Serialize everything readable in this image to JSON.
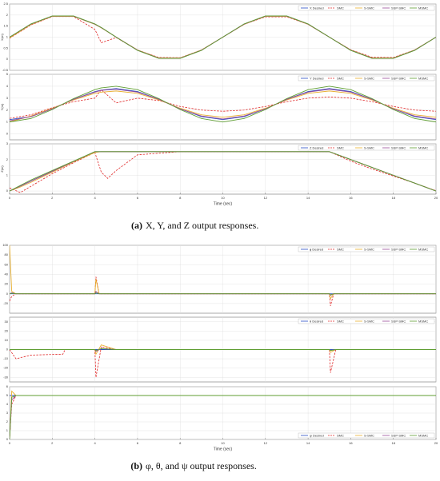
{
  "chart_data": [
    {
      "type": "line",
      "ylabel": "X(m)",
      "xlim": [
        0,
        20
      ],
      "ylim": [
        -0.5,
        2.5
      ],
      "yticks": [
        -0.5,
        0,
        0.5,
        1,
        1.5,
        2,
        2.5
      ],
      "grid": true,
      "legend": "top-right",
      "x": [
        0,
        1,
        2,
        3,
        4,
        4.3,
        5,
        6,
        7,
        8,
        9,
        10,
        11,
        12,
        13,
        14,
        15,
        16,
        17,
        18,
        19,
        20
      ],
      "series": [
        {
          "name": "X Desired",
          "color": "#2b4fc4",
          "dash": false,
          "values": [
            1,
            1.59,
            1.95,
            1.95,
            1.59,
            1.43,
            1,
            0.41,
            0.05,
            0.05,
            0.41,
            1,
            1.59,
            1.95,
            1.95,
            1.59,
            1,
            0.41,
            0.05,
            0.05,
            0.41,
            1
          ]
        },
        {
          "name": "SMC",
          "color": "#e02828",
          "dash": true,
          "values": [
            0.95,
            1.55,
            1.93,
            1.93,
            1.35,
            0.75,
            0.98,
            0.42,
            0.08,
            0.07,
            0.42,
            1,
            1.58,
            1.92,
            1.92,
            1.58,
            1,
            0.43,
            0.09,
            0.08,
            0.42,
            1
          ]
        },
        {
          "name": "S-SMC",
          "color": "#e8b030",
          "dash": false,
          "values": [
            0.97,
            1.57,
            1.94,
            1.94,
            1.58,
            1.42,
            1,
            0.42,
            0.06,
            0.06,
            0.42,
            1,
            1.58,
            1.94,
            1.94,
            1.58,
            1,
            0.42,
            0.06,
            0.06,
            0.42,
            1
          ]
        },
        {
          "name": "SSP-SMC",
          "color": "#9a4f9a",
          "dash": false,
          "values": [
            1,
            1.59,
            1.95,
            1.95,
            1.59,
            1.43,
            1,
            0.41,
            0.05,
            0.05,
            0.41,
            1,
            1.59,
            1.95,
            1.95,
            1.59,
            1,
            0.41,
            0.05,
            0.05,
            0.41,
            1
          ]
        },
        {
          "name": "MSMC",
          "color": "#5f9e32",
          "dash": false,
          "values": [
            1,
            1.6,
            1.96,
            1.96,
            1.6,
            1.44,
            1,
            0.4,
            0.04,
            0.04,
            0.4,
            1,
            1.6,
            1.96,
            1.96,
            1.6,
            1,
            0.4,
            0.04,
            0.04,
            0.4,
            1
          ]
        }
      ]
    },
    {
      "type": "line",
      "ylabel": "Y(m)",
      "xlim": [
        0,
        20
      ],
      "ylim": [
        -0.5,
        5
      ],
      "yticks": [
        0,
        1,
        2,
        3,
        4,
        5
      ],
      "grid": true,
      "legend": "top-right",
      "x": [
        0,
        1,
        2,
        3,
        4,
        4.3,
        5,
        6,
        7,
        8,
        9,
        10,
        11,
        12,
        13,
        14,
        15,
        16,
        17,
        18,
        19,
        20
      ],
      "series": [
        {
          "name": "Y Desired",
          "color": "#2b4fc4",
          "dash": false,
          "values": [
            1.2,
            1.45,
            2.1,
            2.9,
            3.55,
            3.68,
            3.8,
            3.55,
            2.9,
            2.1,
            1.45,
            1.2,
            1.45,
            2.1,
            2.9,
            3.55,
            3.8,
            3.55,
            2.9,
            2.1,
            1.45,
            1.2
          ]
        },
        {
          "name": "SMC",
          "color": "#e02828",
          "dash": true,
          "values": [
            1.3,
            1.6,
            2.2,
            2.7,
            3.0,
            3.7,
            2.6,
            3.0,
            2.8,
            2.3,
            2.0,
            1.9,
            2.0,
            2.3,
            2.7,
            3.0,
            3.1,
            3.0,
            2.7,
            2.3,
            2.0,
            1.9
          ]
        },
        {
          "name": "S-SMC",
          "color": "#e8b030",
          "dash": false,
          "values": [
            1.0,
            1.5,
            2.15,
            2.85,
            3.4,
            3.5,
            3.6,
            3.4,
            2.85,
            2.15,
            1.6,
            1.4,
            1.6,
            2.15,
            2.85,
            3.4,
            3.6,
            3.4,
            2.85,
            2.15,
            1.6,
            1.4
          ]
        },
        {
          "name": "SSP-SMC",
          "color": "#9a4f9a",
          "dash": false,
          "values": [
            1.1,
            1.45,
            2.1,
            2.9,
            3.5,
            3.65,
            3.75,
            3.5,
            2.9,
            2.1,
            1.5,
            1.25,
            1.5,
            2.1,
            2.9,
            3.5,
            3.75,
            3.5,
            2.9,
            2.1,
            1.5,
            1.25
          ]
        },
        {
          "name": "MSMC",
          "color": "#5f9e32",
          "dash": false,
          "values": [
            1.0,
            1.29,
            2.04,
            2.96,
            3.71,
            3.86,
            4.0,
            3.71,
            2.96,
            2.04,
            1.29,
            1.0,
            1.29,
            2.04,
            2.96,
            3.71,
            4.0,
            3.71,
            2.96,
            2.04,
            1.29,
            1.0
          ]
        }
      ]
    },
    {
      "type": "line",
      "ylabel": "Z(m)",
      "xlabel": "Time (sec)",
      "xlim": [
        0,
        20
      ],
      "xticks": [
        0,
        2,
        4,
        6,
        8,
        10,
        12,
        14,
        16,
        18,
        20
      ],
      "ylim": [
        -0.2,
        3
      ],
      "yticks": [
        0,
        1,
        2,
        3
      ],
      "grid": true,
      "legend": "top-right",
      "x": [
        0,
        0.5,
        1,
        2,
        3,
        4,
        4.3,
        4.6,
        5,
        6,
        8,
        10,
        12,
        14,
        15,
        16,
        17,
        18,
        19,
        20
      ],
      "series": [
        {
          "name": "Z Desired",
          "color": "#2b4fc4",
          "dash": false,
          "values": [
            0,
            0.31,
            0.63,
            1.25,
            1.88,
            2.5,
            2.5,
            2.5,
            2.5,
            2.5,
            2.5,
            2.5,
            2.5,
            2.5,
            2.5,
            2.0,
            1.5,
            1.0,
            0.5,
            0
          ]
        },
        {
          "name": "SMC",
          "color": "#e02828",
          "dash": true,
          "values": [
            0.2,
            -0.1,
            0.3,
            1.1,
            1.8,
            2.45,
            1.2,
            0.8,
            1.3,
            2.3,
            2.5,
            2.5,
            2.5,
            2.5,
            2.5,
            1.9,
            1.4,
            0.95,
            0.5,
            0.02
          ]
        },
        {
          "name": "S-SMC",
          "color": "#e8b030",
          "dash": false,
          "values": [
            0,
            0.25,
            0.55,
            1.2,
            1.85,
            2.45,
            2.5,
            2.5,
            2.5,
            2.5,
            2.5,
            2.5,
            2.5,
            2.5,
            2.5,
            2.0,
            1.5,
            1.0,
            0.5,
            0
          ]
        },
        {
          "name": "SSP-SMC",
          "color": "#9a4f9a",
          "dash": false,
          "values": [
            0,
            0.31,
            0.63,
            1.25,
            1.88,
            2.5,
            2.5,
            2.5,
            2.5,
            2.5,
            2.5,
            2.5,
            2.5,
            2.5,
            2.5,
            2.0,
            1.5,
            1.0,
            0.5,
            0
          ]
        },
        {
          "name": "MSMC",
          "color": "#5f9e32",
          "dash": false,
          "values": [
            0,
            0.35,
            0.7,
            1.3,
            1.9,
            2.5,
            2.5,
            2.5,
            2.5,
            2.5,
            2.5,
            2.5,
            2.5,
            2.5,
            2.5,
            2.0,
            1.5,
            1.0,
            0.5,
            0
          ]
        }
      ]
    },
    {
      "type": "line",
      "xlim": [
        0,
        20
      ],
      "ylim": [
        -40,
        100
      ],
      "yticks": [
        -20,
        0,
        20,
        40,
        60,
        80,
        100
      ],
      "grid": true,
      "legend": "top-right",
      "x": [
        0,
        0.1,
        0.3,
        4,
        4.05,
        4.2,
        15,
        15.05,
        15.2,
        20
      ],
      "series": [
        {
          "name": "ϕ Desired",
          "color": "#2b4fc4",
          "dash": false,
          "values": [
            0,
            0,
            0,
            0,
            0,
            0,
            0,
            0,
            0,
            0
          ]
        },
        {
          "name": "SMC",
          "color": "#e02828",
          "dash": true,
          "values": [
            -15,
            -5,
            0,
            0,
            35,
            0,
            0,
            -25,
            0,
            0
          ]
        },
        {
          "name": "S-SMC",
          "color": "#e8b030",
          "dash": false,
          "values": [
            100,
            5,
            0,
            0,
            30,
            0,
            0,
            -10,
            0,
            0
          ]
        },
        {
          "name": "SSP-SMC",
          "color": "#9a4f9a",
          "dash": false,
          "values": [
            0,
            2,
            0,
            0,
            5,
            0,
            0,
            -3,
            0,
            0
          ]
        },
        {
          "name": "MSMC",
          "color": "#5f9e32",
          "dash": false,
          "values": [
            0,
            1,
            0,
            0,
            2,
            0,
            0,
            -2,
            0,
            0
          ]
        }
      ]
    },
    {
      "type": "line",
      "xlim": [
        0,
        20
      ],
      "ylim": [
        -35,
        35
      ],
      "yticks": [
        -30,
        -20,
        -10,
        0,
        10,
        20,
        30
      ],
      "grid": true,
      "legend": "top-right",
      "x": [
        0,
        0.3,
        1,
        2.5,
        2.6,
        4,
        4.05,
        4.3,
        5,
        15,
        15.05,
        15.3,
        20
      ],
      "series": [
        {
          "name": "θ Desired",
          "color": "#2b4fc4",
          "dash": false,
          "values": [
            0,
            0,
            0,
            0,
            0,
            0,
            0,
            0,
            0,
            0,
            0,
            0,
            0
          ]
        },
        {
          "name": "SMC",
          "color": "#e02828",
          "dash": true,
          "values": [
            0,
            -10,
            -6,
            -5,
            0,
            0,
            -30,
            3,
            0,
            0,
            -25,
            0,
            0
          ]
        },
        {
          "name": "S-SMC",
          "color": "#e8b030",
          "dash": false,
          "values": [
            0,
            0,
            0,
            0,
            0,
            0,
            -5,
            5,
            0,
            0,
            -3,
            0,
            0
          ]
        },
        {
          "name": "SSP-SMC",
          "color": "#9a4f9a",
          "dash": false,
          "values": [
            0,
            0,
            0,
            0,
            0,
            0,
            -2,
            1,
            0,
            0,
            -1,
            0,
            0
          ]
        },
        {
          "name": "MSMC",
          "color": "#5f9e32",
          "dash": false,
          "values": [
            0,
            0,
            0,
            0,
            0,
            0,
            -1,
            1,
            0,
            0,
            -1,
            0,
            0
          ]
        }
      ]
    },
    {
      "type": "line",
      "xlabel": "Time (sec)",
      "xlim": [
        0,
        20
      ],
      "xticks": [
        0,
        2,
        4,
        6,
        8,
        10,
        12,
        14,
        16,
        18,
        20
      ],
      "ylim": [
        0,
        6
      ],
      "yticks": [
        0,
        1,
        2,
        3,
        4,
        5,
        6
      ],
      "grid": true,
      "legend": "bottom-right",
      "x": [
        0,
        0.1,
        0.3,
        20
      ],
      "series": [
        {
          "name": "ψ Desired",
          "color": "#2b4fc4",
          "dash": false,
          "values": [
            5,
            5,
            5,
            5
          ]
        },
        {
          "name": "SMC",
          "color": "#e02828",
          "dash": true,
          "values": [
            0,
            4,
            5,
            5
          ]
        },
        {
          "name": "S-SMC",
          "color": "#e8b030",
          "dash": false,
          "values": [
            0,
            5.5,
            5,
            5
          ]
        },
        {
          "name": "SSP-SMC",
          "color": "#9a4f9a",
          "dash": false,
          "values": [
            0,
            4.5,
            5,
            5
          ]
        },
        {
          "name": "MSMC",
          "color": "#5f9e32",
          "dash": false,
          "values": [
            0,
            4.8,
            5,
            5
          ]
        }
      ]
    }
  ],
  "captions": [
    {
      "label": "(a)",
      "text": "X, Y, and Z output responses."
    },
    {
      "label": "(b)",
      "text": "φ, θ, and ψ output responses."
    }
  ]
}
